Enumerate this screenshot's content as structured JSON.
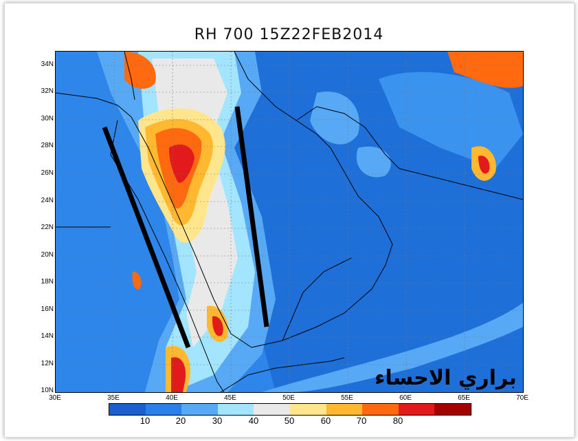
{
  "title": "RH 700  15Z22FEB2014",
  "watermark": "براري الاحساء",
  "lat_labels": [
    "34N",
    "32N",
    "30N",
    "28N",
    "26N",
    "24N",
    "22N",
    "20N",
    "18N",
    "16N",
    "14N",
    "12N",
    "10N"
  ],
  "lon_labels": [
    "30E",
    "35E",
    "40E",
    "45E",
    "50E",
    "55E",
    "60E",
    "65E",
    "70E"
  ],
  "colorbar": {
    "colors": [
      "#1c5fcc",
      "#2a7fe8",
      "#57a9f5",
      "#a3e4ff",
      "#e9e9e9",
      "#ffe68c",
      "#ffb830",
      "#ff6a10",
      "#e31a1c",
      "#a50000"
    ],
    "labels": [
      "10",
      "20",
      "30",
      "40",
      "50",
      "60",
      "70",
      "80"
    ]
  }
}
